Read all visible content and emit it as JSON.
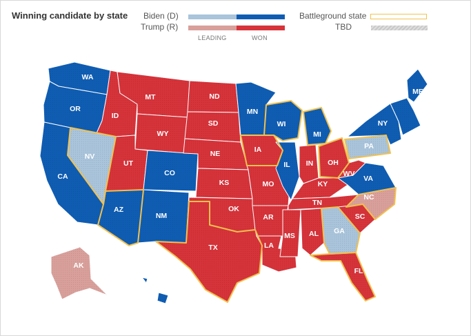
{
  "title": "Winning candidate by state",
  "legend": {
    "candidates": [
      {
        "name": "Biden (D)",
        "leading_color": "#a9c4db",
        "won_color": "#0f5db3"
      },
      {
        "name": "Trump (R)",
        "leading_color": "#d9a09b",
        "won_color": "#d6333a"
      }
    ],
    "columns": {
      "leading": "LEADING",
      "won": "WON"
    },
    "battleground": {
      "label": "Battleground state",
      "color": "#f2c14e"
    },
    "tbd": {
      "label": "TBD",
      "color": "#c8c8c8"
    }
  },
  "states": {
    "WA": {
      "label": "WA",
      "status": "won",
      "party": "D"
    },
    "OR": {
      "label": "OR",
      "status": "won",
      "party": "D"
    },
    "CA": {
      "label": "CA",
      "status": "won",
      "party": "D"
    },
    "NV": {
      "label": "NV",
      "status": "leading",
      "party": "D",
      "battleground": true
    },
    "ID": {
      "label": "ID",
      "status": "won",
      "party": "R"
    },
    "MT": {
      "label": "MT",
      "status": "won",
      "party": "R"
    },
    "WY": {
      "label": "WY",
      "status": "won",
      "party": "R"
    },
    "UT": {
      "label": "UT",
      "status": "won",
      "party": "R"
    },
    "AZ": {
      "label": "AZ",
      "status": "won",
      "party": "D",
      "battleground": true
    },
    "CO": {
      "label": "CO",
      "status": "won",
      "party": "D"
    },
    "NM": {
      "label": "NM",
      "status": "won",
      "party": "D"
    },
    "ND": {
      "label": "ND",
      "status": "won",
      "party": "R"
    },
    "SD": {
      "label": "SD",
      "status": "won",
      "party": "R"
    },
    "NE": {
      "label": "NE",
      "status": "won",
      "party": "R"
    },
    "KS": {
      "label": "KS",
      "status": "won",
      "party": "R"
    },
    "OK": {
      "label": "OK",
      "status": "won",
      "party": "R"
    },
    "TX": {
      "label": "TX",
      "status": "won",
      "party": "R",
      "battleground": true
    },
    "MN": {
      "label": "MN",
      "status": "won",
      "party": "D"
    },
    "IA": {
      "label": "IA",
      "status": "won",
      "party": "R",
      "battleground": true
    },
    "MO": {
      "label": "MO",
      "status": "won",
      "party": "R"
    },
    "AR": {
      "label": "AR",
      "status": "won",
      "party": "R"
    },
    "LA": {
      "label": "LA",
      "status": "won",
      "party": "R"
    },
    "WI": {
      "label": "WI",
      "status": "won",
      "party": "D",
      "battleground": true
    },
    "IL": {
      "label": "IL",
      "status": "won",
      "party": "D"
    },
    "MI": {
      "label": "MI",
      "status": "won",
      "party": "D",
      "battleground": true
    },
    "IN": {
      "label": "IN",
      "status": "won",
      "party": "R"
    },
    "OH": {
      "label": "OH",
      "status": "won",
      "party": "R",
      "battleground": true
    },
    "KY": {
      "label": "KY",
      "status": "won",
      "party": "R"
    },
    "TN": {
      "label": "TN",
      "status": "won",
      "party": "R"
    },
    "MS": {
      "label": "MS",
      "status": "won",
      "party": "R"
    },
    "AL": {
      "label": "AL",
      "status": "won",
      "party": "R"
    },
    "GA": {
      "label": "GA",
      "status": "leading",
      "party": "D",
      "battleground": true
    },
    "FL": {
      "label": "FL",
      "status": "won",
      "party": "R",
      "battleground": true
    },
    "SC": {
      "label": "SC",
      "status": "won",
      "party": "R"
    },
    "NC": {
      "label": "NC",
      "status": "leading",
      "party": "R",
      "battleground": true
    },
    "VA": {
      "label": "VA",
      "status": "won",
      "party": "D"
    },
    "WV": {
      "label": "WV",
      "status": "won",
      "party": "R"
    },
    "PA": {
      "label": "PA",
      "status": "leading",
      "party": "D",
      "battleground": true
    },
    "NY": {
      "label": "NY",
      "status": "won",
      "party": "D"
    },
    "ME": {
      "label": "ME",
      "status": "won",
      "party": "D"
    },
    "AK": {
      "label": "AK",
      "status": "leading",
      "party": "R"
    },
    "HI": {
      "label": "",
      "status": "won",
      "party": "D"
    },
    "NE_ext": {
      "label": "",
      "status": "won",
      "party": "D"
    }
  }
}
